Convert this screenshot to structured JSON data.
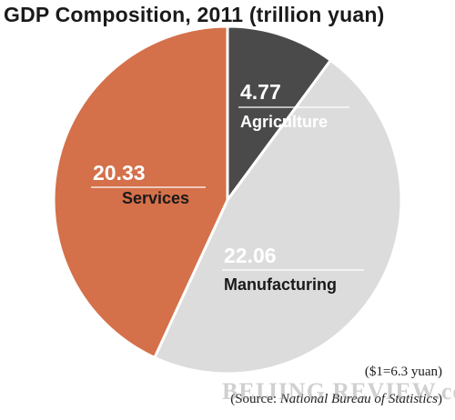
{
  "title": "GDP Composition, 2011 (trillion yuan)",
  "chart_data": {
    "type": "pie",
    "title": "GDP Composition, 2011 (trillion yuan)",
    "slices": [
      {
        "label": "Agriculture",
        "value": 4.77,
        "value_text": "4.77",
        "color": "#4a4a4a",
        "text_color": "#ffffff",
        "name_color": "#ffffff"
      },
      {
        "label": "Manufacturing",
        "value": 22.06,
        "value_text": "22.06",
        "color": "#dcdcdc",
        "text_color": "#ffffff",
        "name_color": "#1a1a1a"
      },
      {
        "label": "Services",
        "value": 20.33,
        "value_text": "20.33",
        "color": "#d4704a",
        "text_color": "#ffffff",
        "name_color": "#1a1a1a"
      }
    ]
  },
  "notes": {
    "exchange_rate": "($1=6.3 yuan)",
    "source_prefix": "(Source: ",
    "source_name": "National Bureau of Statistics",
    "source_suffix": ")"
  },
  "watermark": "BEIJING REVIEW.com.cn"
}
